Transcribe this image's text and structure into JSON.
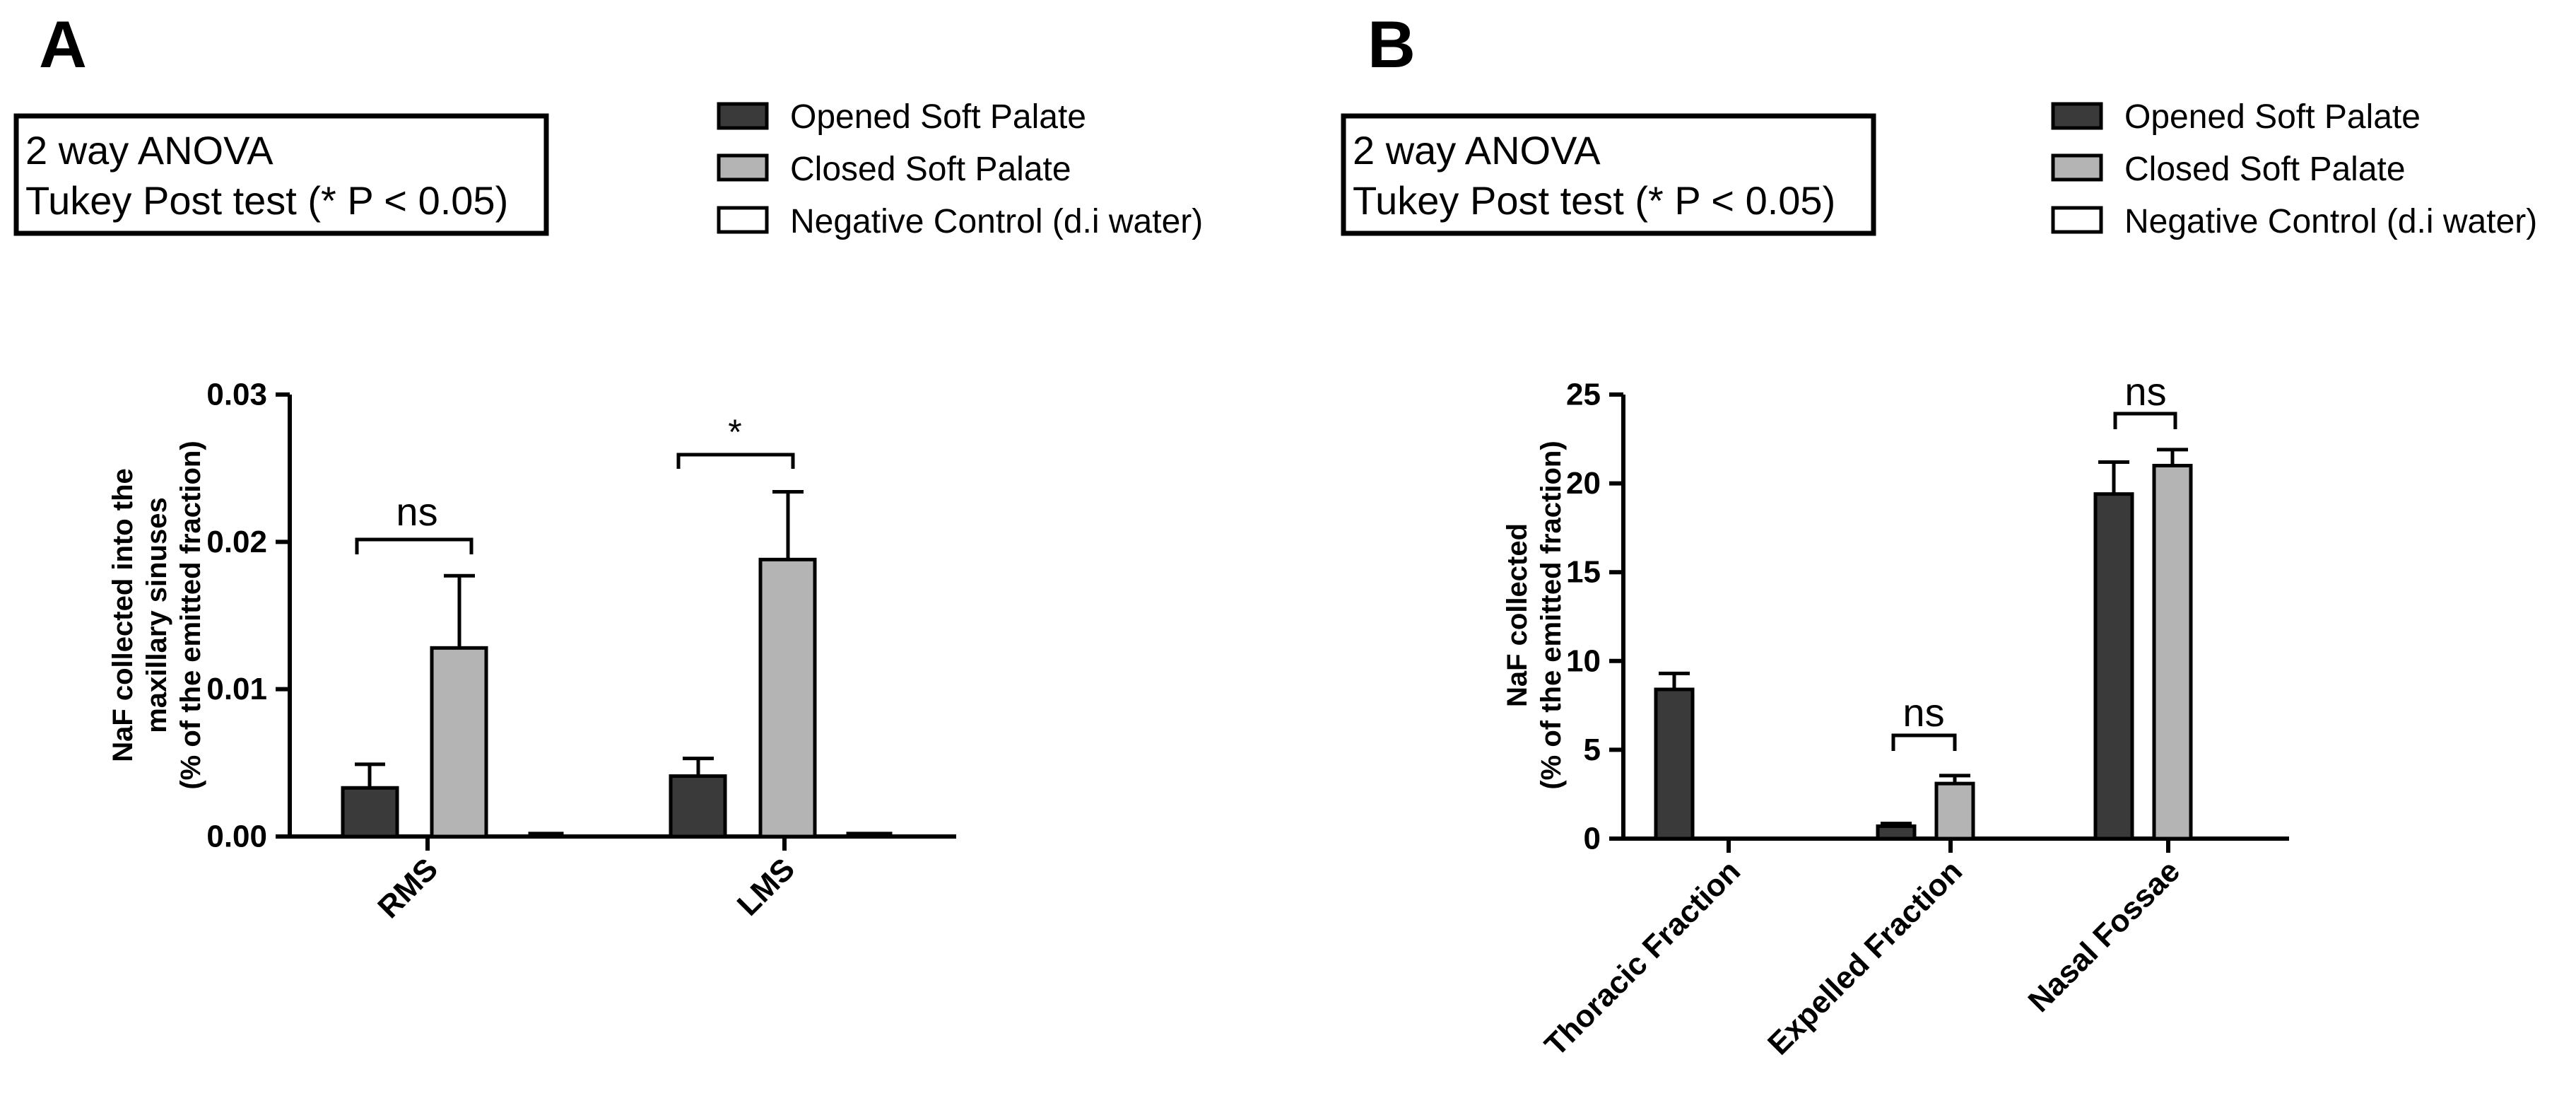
{
  "panels": {
    "a": {
      "letter": "A",
      "stats_line1": "2 way ANOVA",
      "stats_line2": "Tukey Post test (* P < 0.05)"
    },
    "b": {
      "letter": "B",
      "stats_line1": "2 way ANOVA",
      "stats_line2": "Tukey Post test (* P < 0.05)"
    }
  },
  "colors": {
    "opened": "#3a3a3a",
    "closed": "#b4b4b4",
    "negative": "#ffffff"
  },
  "chart_data": [
    {
      "type": "bar",
      "panel": "A",
      "title": "",
      "xlabel": "",
      "ylabel_lines": [
        "NaF collected into the",
        "maxillary sinuses",
        "(% of the emitted fraction)"
      ],
      "ylim": [
        0,
        0.03
      ],
      "yticks": [
        "0.00",
        "0.01",
        "0.02",
        "0.03"
      ],
      "categories": [
        "RMS",
        "LMS"
      ],
      "legend": [
        "Opened Soft Palate",
        "Closed Soft Palate",
        "Negative Control (d.i water)"
      ],
      "series": [
        {
          "name": "Opened Soft Palate",
          "values": [
            0.0033,
            0.0041
          ],
          "errors": [
            0.0016,
            0.0012
          ]
        },
        {
          "name": "Closed Soft Palate",
          "values": [
            0.0128,
            0.0188
          ],
          "errors": [
            0.0049,
            0.0046
          ]
        },
        {
          "name": "Negative Control (d.i water)",
          "values": [
            0.0002,
            0.0002
          ],
          "errors": [
            0,
            0
          ]
        }
      ],
      "annotations": [
        {
          "category": "RMS",
          "text": "ns"
        },
        {
          "category": "LMS",
          "text": "*"
        }
      ]
    },
    {
      "type": "bar",
      "panel": "B",
      "title": "",
      "xlabel": "",
      "ylabel_lines": [
        "NaF collected",
        "(% of the emitted fraction)"
      ],
      "ylim": [
        0,
        25
      ],
      "yticks": [
        "0",
        "5",
        "10",
        "15",
        "20",
        "25"
      ],
      "categories": [
        "Thoracic Fraction",
        "Expelled Fraction",
        "Nasal Fossae"
      ],
      "legend": [
        "Opened Soft Palate",
        "Closed Soft Palate",
        "Negative Control (d.i water)"
      ],
      "series": [
        {
          "name": "Opened Soft Palate",
          "values": [
            8.4,
            0.7,
            19.4
          ],
          "errors": [
            0.9,
            0.15,
            1.8
          ]
        },
        {
          "name": "Closed Soft Palate",
          "values": [
            0,
            3.1,
            21.0
          ],
          "errors": [
            0,
            0.45,
            0.9
          ]
        }
      ],
      "annotations": [
        {
          "category": "Expelled Fraction",
          "text": "ns"
        },
        {
          "category": "Nasal Fossae",
          "text": "ns"
        }
      ]
    }
  ]
}
